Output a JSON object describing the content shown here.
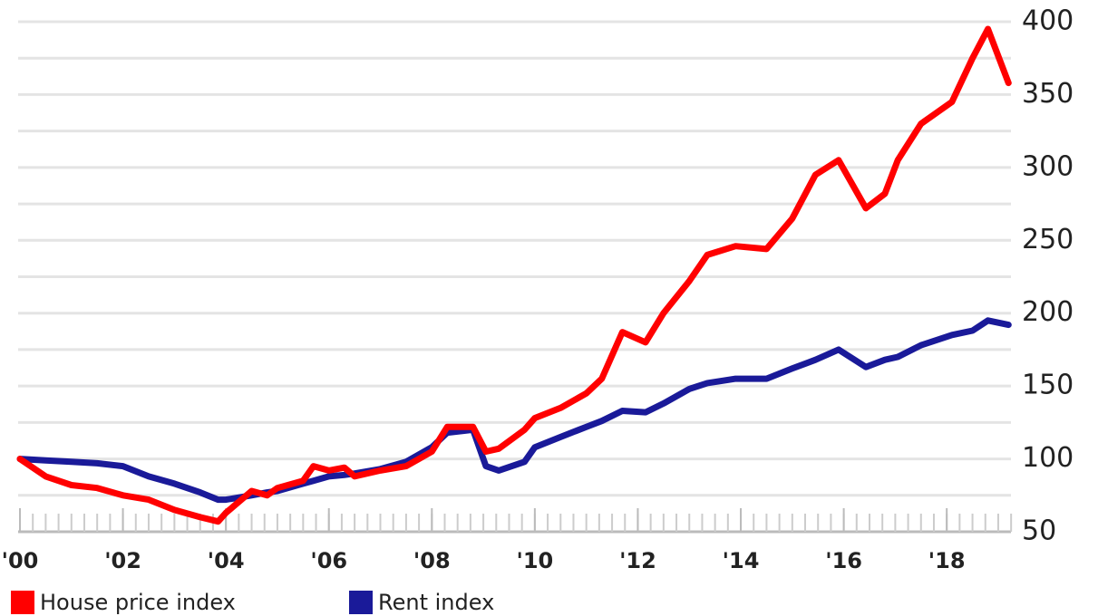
{
  "chart_data": {
    "type": "line",
    "x": [
      2000,
      2000.5,
      2001,
      2001.5,
      2002,
      2002.5,
      2003,
      2003.5,
      2003.85,
      2004,
      2004.5,
      2004.8,
      2005,
      2005.5,
      2005.7,
      2006,
      2006.3,
      2006.5,
      2007,
      2007.5,
      2008,
      2008.3,
      2008.8,
      2009.05,
      2009.3,
      2009.8,
      2010,
      2010.5,
      2011,
      2011.3,
      2011.7,
      2012.15,
      2012.5,
      2013,
      2013.35,
      2013.9,
      2014.5,
      2015,
      2015.45,
      2015.9,
      2016.43,
      2016.8,
      2017.05,
      2017.5,
      2018.1,
      2018.5,
      2018.8,
      2019.2
    ],
    "series": [
      {
        "name": "House price index",
        "color": "#ff0000",
        "values": [
          100,
          88,
          82,
          80,
          75,
          72,
          65,
          60,
          57,
          63,
          78,
          75,
          80,
          85,
          95,
          92,
          94,
          88,
          92,
          95,
          105,
          122,
          122,
          105,
          107,
          120,
          128,
          135,
          145,
          155,
          187,
          180,
          200,
          222,
          240,
          246,
          244,
          265,
          295,
          305,
          272,
          282,
          305,
          330,
          345,
          375,
          395,
          358
        ]
      },
      {
        "name": "Rent index",
        "color": "#1a1a99",
        "values": [
          100,
          99,
          98,
          97,
          95,
          88,
          83,
          77,
          72,
          72,
          75,
          77,
          78,
          83,
          85,
          88,
          89,
          90,
          93,
          98,
          108,
          118,
          120,
          95,
          92,
          98,
          108,
          115,
          122,
          126,
          133,
          132,
          138,
          148,
          152,
          155,
          155,
          162,
          168,
          175,
          163,
          168,
          170,
          178,
          185,
          188,
          195,
          192
        ]
      }
    ],
    "xlim": [
      2000,
      2019.3
    ],
    "xticks": [
      {
        "value": 2000,
        "label": "'00"
      },
      {
        "value": 2002,
        "label": "'02"
      },
      {
        "value": 2004,
        "label": "'04"
      },
      {
        "value": 2006,
        "label": "'06"
      },
      {
        "value": 2008,
        "label": "'08"
      },
      {
        "value": 2010,
        "label": "'10"
      },
      {
        "value": 2012,
        "label": "'12"
      },
      {
        "value": 2014,
        "label": "'14"
      },
      {
        "value": 2016,
        "label": "'16"
      },
      {
        "value": 2018,
        "label": "'18"
      }
    ],
    "ylim": [
      50,
      400
    ],
    "yticks": [
      50,
      100,
      150,
      200,
      250,
      300,
      350,
      400
    ],
    "y_minor_ticks": [
      75,
      125,
      175,
      225,
      275,
      325,
      375
    ],
    "grid": true
  }
}
